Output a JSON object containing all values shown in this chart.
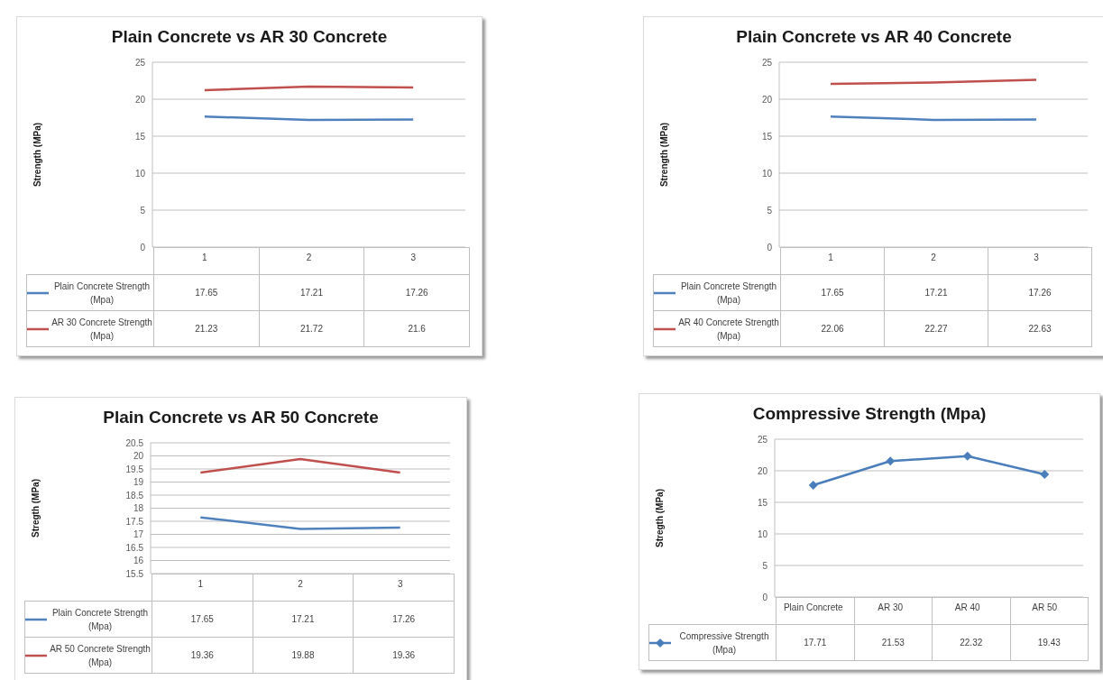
{
  "chart_data": [
    {
      "type": "line",
      "title": "Plain Concrete vs AR 30 Concrete",
      "ylabel": "Strength (MPa)",
      "categories": [
        "1",
        "2",
        "3"
      ],
      "series": [
        {
          "name": "Plain Concrete Strength (Mpa)",
          "color": "#4f81bd",
          "values": [
            17.65,
            17.21,
            17.26
          ]
        },
        {
          "name": "AR 30 Concrete Strength (Mpa)",
          "color": "#c0504d",
          "values": [
            21.23,
            21.72,
            21.6
          ]
        }
      ],
      "ylim": [
        0,
        25
      ],
      "yticks": [
        0,
        5,
        10,
        15,
        20,
        25
      ],
      "grid": "y",
      "legend": "bottom",
      "data_labels": true,
      "marker": "none"
    },
    {
      "type": "line",
      "title": "Plain Concrete vs AR 40 Concrete",
      "ylabel": "Strength (MPa)",
      "categories": [
        "1",
        "2",
        "3"
      ],
      "series": [
        {
          "name": "Plain Concrete Strength (Mpa)",
          "color": "#4f81bd",
          "values": [
            17.65,
            17.21,
            17.26
          ]
        },
        {
          "name": "AR 40 Concrete Strength (Mpa)",
          "color": "#c0504d",
          "values": [
            22.06,
            22.27,
            22.63
          ]
        }
      ],
      "ylim": [
        0,
        25
      ],
      "yticks": [
        0,
        5,
        10,
        15,
        20,
        25
      ],
      "grid": "y",
      "legend": "bottom",
      "data_labels": true,
      "marker": "none"
    },
    {
      "type": "line",
      "title": "Plain Concrete vs AR 50 Concrete",
      "ylabel": "Stregth (MPa)",
      "categories": [
        "1",
        "2",
        "3"
      ],
      "series": [
        {
          "name": "Plain Concrete Strength (Mpa)",
          "color": "#4f81bd",
          "values": [
            17.65,
            17.21,
            17.26
          ]
        },
        {
          "name": "AR 50 Concrete Strength (Mpa)",
          "color": "#c0504d",
          "values": [
            19.36,
            19.88,
            19.36
          ]
        }
      ],
      "ylim": [
        15.5,
        20.5
      ],
      "yticks": [
        15.5,
        16,
        16.5,
        17,
        17.5,
        18,
        18.5,
        19,
        19.5,
        20,
        20.5
      ],
      "grid": "y",
      "legend": "bottom",
      "data_labels": true,
      "marker": "none"
    },
    {
      "type": "line",
      "title": "Compressive Strength (Mpa)",
      "ylabel": "Stregth (MPa)",
      "categories": [
        "Plain Concrete",
        "AR 30",
        "AR 40",
        "AR 50"
      ],
      "series": [
        {
          "name": "Compressive Strength (Mpa)",
          "color": "#4a7ebb",
          "values": [
            17.71,
            21.53,
            22.32,
            19.43
          ]
        }
      ],
      "ylim": [
        0,
        25
      ],
      "yticks": [
        0,
        5,
        10,
        15,
        20,
        25
      ],
      "grid": "y",
      "legend": "bottom",
      "data_labels": true,
      "marker": "diamond"
    }
  ]
}
